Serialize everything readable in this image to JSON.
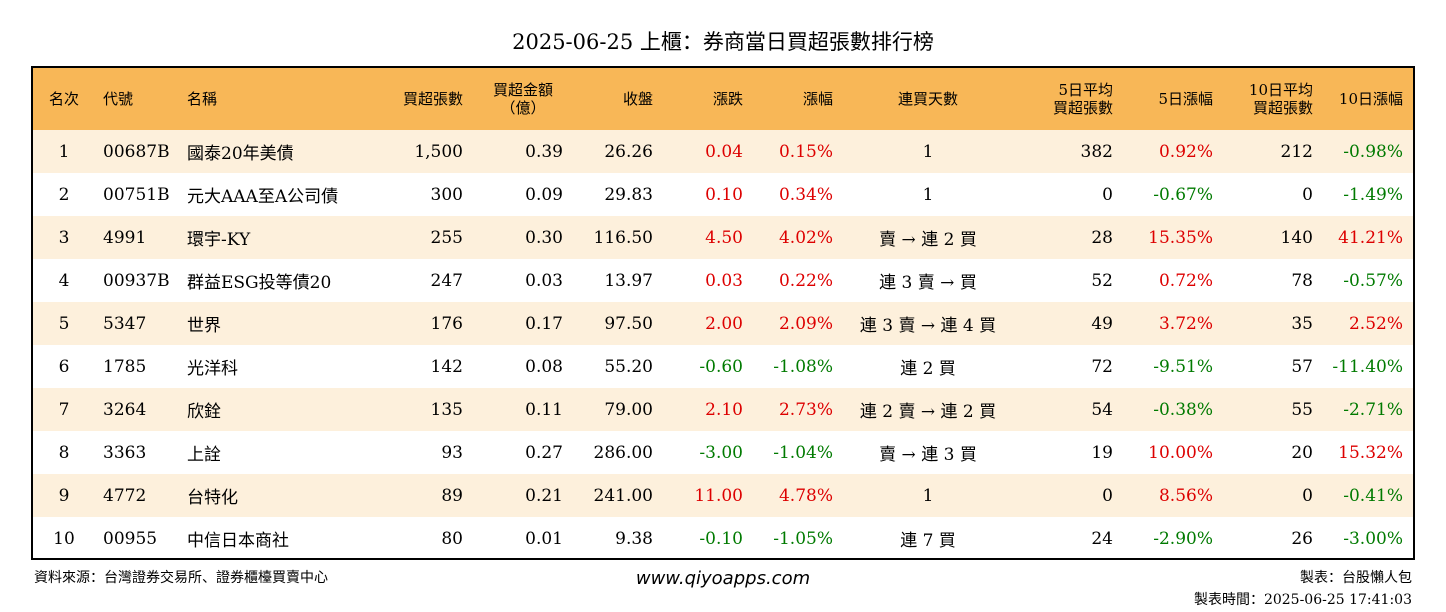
{
  "title": "2025-06-25 上櫃：券商當日買超張數排行榜",
  "colors": {
    "header_bg": "#f8b757",
    "odd_row_bg": "#fdf0dc",
    "even_row_bg": "#ffffff",
    "up": "#dd0000",
    "down": "#007a00"
  },
  "columns": [
    "名次",
    "代號",
    "名稱",
    "買超張數",
    "買超金額\n（億）",
    "收盤",
    "漲跌",
    "漲幅",
    "連買天數",
    "5日平均\n買超張數",
    "5日漲幅",
    "10日平均\n買超張數",
    "10日漲幅"
  ],
  "rows": [
    {
      "rank": "1",
      "code": "00687B",
      "name": "國泰20年美債",
      "net_buy": "1,500",
      "amount": "0.39",
      "close": "26.26",
      "change": "0.04",
      "change_pct": "0.15%",
      "streak": "1",
      "avg5": "382",
      "pct5": "0.92%",
      "avg10": "212",
      "pct10": "-0.98%"
    },
    {
      "rank": "2",
      "code": "00751B",
      "name": "元大AAA至A公司債",
      "net_buy": "300",
      "amount": "0.09",
      "close": "29.83",
      "change": "0.10",
      "change_pct": "0.34%",
      "streak": "1",
      "avg5": "0",
      "pct5": "-0.67%",
      "avg10": "0",
      "pct10": "-1.49%"
    },
    {
      "rank": "3",
      "code": "4991",
      "name": "環宇-KY",
      "net_buy": "255",
      "amount": "0.30",
      "close": "116.50",
      "change": "4.50",
      "change_pct": "4.02%",
      "streak": "賣 → 連 2 買",
      "avg5": "28",
      "pct5": "15.35%",
      "avg10": "140",
      "pct10": "41.21%"
    },
    {
      "rank": "4",
      "code": "00937B",
      "name": "群益ESG投等債20",
      "net_buy": "247",
      "amount": "0.03",
      "close": "13.97",
      "change": "0.03",
      "change_pct": "0.22%",
      "streak": "連 3 賣 → 買",
      "avg5": "52",
      "pct5": "0.72%",
      "avg10": "78",
      "pct10": "-0.57%"
    },
    {
      "rank": "5",
      "code": "5347",
      "name": "世界",
      "net_buy": "176",
      "amount": "0.17",
      "close": "97.50",
      "change": "2.00",
      "change_pct": "2.09%",
      "streak": "連 3 賣 → 連 4 買",
      "avg5": "49",
      "pct5": "3.72%",
      "avg10": "35",
      "pct10": "2.52%"
    },
    {
      "rank": "6",
      "code": "1785",
      "name": "光洋科",
      "net_buy": "142",
      "amount": "0.08",
      "close": "55.20",
      "change": "-0.60",
      "change_pct": "-1.08%",
      "streak": "連 2 買",
      "avg5": "72",
      "pct5": "-9.51%",
      "avg10": "57",
      "pct10": "-11.40%"
    },
    {
      "rank": "7",
      "code": "3264",
      "name": "欣銓",
      "net_buy": "135",
      "amount": "0.11",
      "close": "79.00",
      "change": "2.10",
      "change_pct": "2.73%",
      "streak": "連 2 賣 → 連 2 買",
      "avg5": "54",
      "pct5": "-0.38%",
      "avg10": "55",
      "pct10": "-2.71%"
    },
    {
      "rank": "8",
      "code": "3363",
      "name": "上詮",
      "net_buy": "93",
      "amount": "0.27",
      "close": "286.00",
      "change": "-3.00",
      "change_pct": "-1.04%",
      "streak": "賣 → 連 3 買",
      "avg5": "19",
      "pct5": "10.00%",
      "avg10": "20",
      "pct10": "15.32%"
    },
    {
      "rank": "9",
      "code": "4772",
      "name": "台特化",
      "net_buy": "89",
      "amount": "0.21",
      "close": "241.00",
      "change": "11.00",
      "change_pct": "4.78%",
      "streak": "1",
      "avg5": "0",
      "pct5": "8.56%",
      "avg10": "0",
      "pct10": "-0.41%"
    },
    {
      "rank": "10",
      "code": "00955",
      "name": "中信日本商社",
      "net_buy": "80",
      "amount": "0.01",
      "close": "9.38",
      "change": "-0.10",
      "change_pct": "-1.05%",
      "streak": "連 7 買",
      "avg5": "24",
      "pct5": "-2.90%",
      "avg10": "26",
      "pct10": "-3.00%"
    }
  ],
  "footer": {
    "source": "資料來源：台灣證券交易所、證券櫃檯買賣中心",
    "site": "www.qiyoapps.com",
    "author": "製表：台股懶人包",
    "made_at": "製表時間：2025-06-25 17:41:03"
  }
}
